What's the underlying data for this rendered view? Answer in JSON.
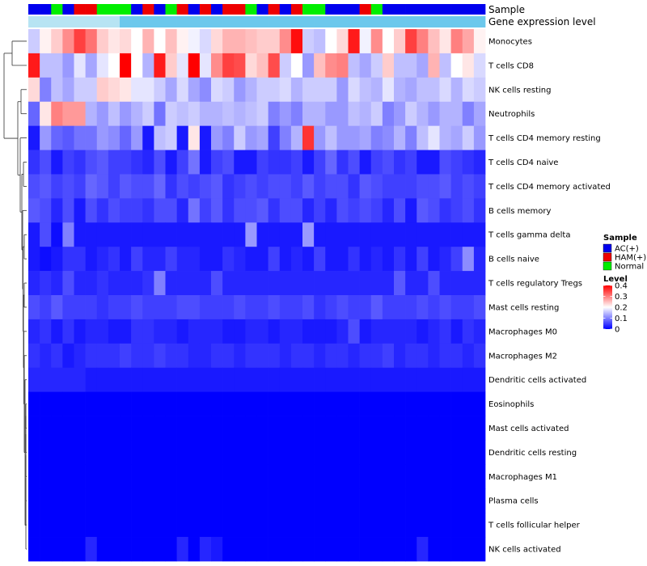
{
  "chart_data": {
    "type": "heatmap",
    "title": "",
    "annotation_tracks": [
      {
        "name": "Sample"
      },
      {
        "name": "Gene expression level"
      }
    ],
    "rows": [
      "Monocytes",
      "T cells CD8",
      "NK cells resting",
      "Neutrophils",
      "T cells CD4 memory resting",
      "T cells CD4 naive",
      "T cells CD4 memory activated",
      "B cells memory",
      "T cells gamma delta",
      "B cells naive",
      "T cells regulatory  Tregs",
      "Mast cells resting",
      "Macrophages M0",
      "Macrophages M2",
      "Dendritic cells activated",
      "Eosinophils",
      "Mast cells activated",
      "Dendritic cells resting",
      "Macrophages M1",
      "Plasma cells",
      "T cells follicular helper",
      "NK cells activated"
    ],
    "sample_groups": [
      "AC",
      "AC",
      "N",
      "AC",
      "H",
      "H",
      "N",
      "N",
      "N",
      "AC",
      "H",
      "AC",
      "N",
      "H",
      "AC",
      "H",
      "AC",
      "H",
      "H",
      "N",
      "AC",
      "H",
      "AC",
      "H",
      "N",
      "N",
      "AC",
      "AC",
      "AC",
      "H",
      "N",
      "AC",
      "AC",
      "AC",
      "AC",
      "AC",
      "AC",
      "AC",
      "AC",
      "AC"
    ],
    "values": [
      [
        0.16,
        0.21,
        0.24,
        0.29,
        0.35,
        0.31,
        0.24,
        0.22,
        0.23,
        0.2,
        0.26,
        0.2,
        0.25,
        0.21,
        0.19,
        0.17,
        0.23,
        0.26,
        0.26,
        0.25,
        0.24,
        0.24,
        0.29,
        0.39,
        0.16,
        0.15,
        0.2,
        0.23,
        0.38,
        0.19,
        0.29,
        0.2,
        0.24,
        0.35,
        0.3,
        0.25,
        0.22,
        0.3,
        0.27,
        0.21
      ],
      [
        0.38,
        0.15,
        0.15,
        0.12,
        0.18,
        0.13,
        0.18,
        0.2,
        0.4,
        0.2,
        0.14,
        0.38,
        0.24,
        0.18,
        0.4,
        0.18,
        0.29,
        0.35,
        0.34,
        0.23,
        0.25,
        0.34,
        0.16,
        0.2,
        0.12,
        0.25,
        0.29,
        0.3,
        0.15,
        0.13,
        0.16,
        0.24,
        0.15,
        0.15,
        0.13,
        0.26,
        0.15,
        0.2,
        0.22,
        0.17
      ],
      [
        0.23,
        0.1,
        0.15,
        0.13,
        0.16,
        0.16,
        0.24,
        0.23,
        0.22,
        0.18,
        0.18,
        0.16,
        0.13,
        0.17,
        0.13,
        0.11,
        0.17,
        0.16,
        0.12,
        0.14,
        0.16,
        0.16,
        0.17,
        0.14,
        0.16,
        0.16,
        0.16,
        0.12,
        0.17,
        0.15,
        0.14,
        0.18,
        0.14,
        0.13,
        0.15,
        0.15,
        0.17,
        0.14,
        0.17,
        0.16
      ],
      [
        0.08,
        0.22,
        0.3,
        0.28,
        0.28,
        0.14,
        0.12,
        0.15,
        0.12,
        0.14,
        0.16,
        0.09,
        0.16,
        0.15,
        0.16,
        0.14,
        0.14,
        0.15,
        0.14,
        0.15,
        0.16,
        0.1,
        0.12,
        0.1,
        0.14,
        0.14,
        0.12,
        0.12,
        0.15,
        0.14,
        0.16,
        0.1,
        0.12,
        0.16,
        0.14,
        0.12,
        0.14,
        0.14,
        0.1,
        0.13
      ],
      [
        0.02,
        0.12,
        0.08,
        0.07,
        0.09,
        0.09,
        0.12,
        0.11,
        0.08,
        0.12,
        0.02,
        0.15,
        0.16,
        0.02,
        0.22,
        0.02,
        0.12,
        0.1,
        0.16,
        0.12,
        0.13,
        0.05,
        0.1,
        0.14,
        0.36,
        0.12,
        0.15,
        0.12,
        0.12,
        0.13,
        0.1,
        0.11,
        0.14,
        0.1,
        0.15,
        0.18,
        0.14,
        0.13,
        0.16,
        0.12
      ],
      [
        0.04,
        0.06,
        0.02,
        0.05,
        0.04,
        0.06,
        0.07,
        0.05,
        0.05,
        0.04,
        0.03,
        0.06,
        0.02,
        0.05,
        0.09,
        0.02,
        0.05,
        0.06,
        0.02,
        0.02,
        0.05,
        0.04,
        0.04,
        0.05,
        0.02,
        0.05,
        0.08,
        0.04,
        0.06,
        0.02,
        0.05,
        0.06,
        0.04,
        0.05,
        0.02,
        0.02,
        0.06,
        0.05,
        0.04,
        0.03
      ],
      [
        0.06,
        0.07,
        0.05,
        0.06,
        0.05,
        0.08,
        0.07,
        0.05,
        0.07,
        0.06,
        0.06,
        0.08,
        0.04,
        0.06,
        0.05,
        0.06,
        0.07,
        0.04,
        0.05,
        0.06,
        0.05,
        0.06,
        0.06,
        0.05,
        0.07,
        0.05,
        0.06,
        0.06,
        0.04,
        0.07,
        0.06,
        0.05,
        0.05,
        0.05,
        0.06,
        0.06,
        0.07,
        0.05,
        0.06,
        0.05
      ],
      [
        0.07,
        0.06,
        0.03,
        0.06,
        0.02,
        0.06,
        0.04,
        0.06,
        0.05,
        0.05,
        0.04,
        0.06,
        0.06,
        0.03,
        0.09,
        0.05,
        0.07,
        0.04,
        0.06,
        0.06,
        0.07,
        0.04,
        0.06,
        0.06,
        0.03,
        0.05,
        0.03,
        0.06,
        0.05,
        0.06,
        0.05,
        0.03,
        0.06,
        0.02,
        0.07,
        0.06,
        0.04,
        0.05,
        0.06,
        0.04
      ],
      [
        0.02,
        0.06,
        0.01,
        0.1,
        0.02,
        0.02,
        0.02,
        0.02,
        0.02,
        0.02,
        0.02,
        0.02,
        0.02,
        0.02,
        0.02,
        0.02,
        0.02,
        0.02,
        0.02,
        0.12,
        0.02,
        0.02,
        0.02,
        0.02,
        0.12,
        0.02,
        0.02,
        0.02,
        0.02,
        0.02,
        0.02,
        0.02,
        0.02,
        0.02,
        0.02,
        0.02,
        0.02,
        0.02,
        0.02,
        0.02
      ],
      [
        0.02,
        0.01,
        0.02,
        0.04,
        0.04,
        0.02,
        0.03,
        0.04,
        0.02,
        0.05,
        0.03,
        0.03,
        0.05,
        0.03,
        0.03,
        0.02,
        0.02,
        0.04,
        0.03,
        0.02,
        0.02,
        0.05,
        0.02,
        0.03,
        0.02,
        0.05,
        0.02,
        0.02,
        0.04,
        0.02,
        0.03,
        0.02,
        0.04,
        0.02,
        0.05,
        0.02,
        0.03,
        0.05,
        0.11,
        0.03
      ],
      [
        0.03,
        0.04,
        0.03,
        0.06,
        0.03,
        0.03,
        0.04,
        0.03,
        0.03,
        0.03,
        0.04,
        0.1,
        0.03,
        0.03,
        0.03,
        0.03,
        0.06,
        0.03,
        0.03,
        0.03,
        0.03,
        0.03,
        0.03,
        0.03,
        0.03,
        0.03,
        0.03,
        0.03,
        0.03,
        0.03,
        0.03,
        0.03,
        0.07,
        0.03,
        0.03,
        0.06,
        0.03,
        0.03,
        0.03,
        0.03
      ],
      [
        0.06,
        0.05,
        0.07,
        0.05,
        0.05,
        0.05,
        0.04,
        0.05,
        0.05,
        0.06,
        0.05,
        0.05,
        0.05,
        0.06,
        0.06,
        0.05,
        0.05,
        0.05,
        0.06,
        0.05,
        0.05,
        0.06,
        0.05,
        0.05,
        0.06,
        0.04,
        0.05,
        0.06,
        0.05,
        0.05,
        0.07,
        0.05,
        0.05,
        0.05,
        0.06,
        0.05,
        0.06,
        0.05,
        0.05,
        0.06
      ],
      [
        0.03,
        0.04,
        0.02,
        0.04,
        0.02,
        0.03,
        0.03,
        0.02,
        0.02,
        0.04,
        0.04,
        0.03,
        0.03,
        0.02,
        0.03,
        0.03,
        0.03,
        0.02,
        0.02,
        0.03,
        0.03,
        0.02,
        0.03,
        0.03,
        0.02,
        0.02,
        0.02,
        0.03,
        0.06,
        0.02,
        0.03,
        0.03,
        0.03,
        0.03,
        0.02,
        0.03,
        0.04,
        0.02,
        0.04,
        0.03
      ],
      [
        0.04,
        0.03,
        0.04,
        0.02,
        0.03,
        0.04,
        0.04,
        0.04,
        0.05,
        0.04,
        0.04,
        0.05,
        0.04,
        0.04,
        0.03,
        0.03,
        0.04,
        0.04,
        0.03,
        0.04,
        0.04,
        0.04,
        0.03,
        0.04,
        0.04,
        0.03,
        0.04,
        0.04,
        0.03,
        0.04,
        0.04,
        0.05,
        0.03,
        0.04,
        0.04,
        0.03,
        0.04,
        0.04,
        0.03,
        0.04
      ],
      [
        0.03,
        0.03,
        0.03,
        0.03,
        0.03,
        0.02,
        0.02,
        0.02,
        0.02,
        0.02,
        0.02,
        0.02,
        0.02,
        0.02,
        0.02,
        0.02,
        0.02,
        0.02,
        0.02,
        0.02,
        0.02,
        0.02,
        0.02,
        0.02,
        0.02,
        0.02,
        0.02,
        0.02,
        0.02,
        0.02,
        0.02,
        0.02,
        0.02,
        0.02,
        0.02,
        0.02,
        0.02,
        0.02,
        0.02,
        0.02
      ],
      [
        0,
        0,
        0,
        0,
        0,
        0,
        0,
        0,
        0,
        0,
        0,
        0,
        0,
        0,
        0,
        0,
        0,
        0,
        0,
        0,
        0,
        0,
        0,
        0,
        0,
        0,
        0,
        0,
        0,
        0,
        0,
        0,
        0,
        0,
        0,
        0,
        0,
        0,
        0,
        0
      ],
      [
        0,
        0,
        0,
        0,
        0,
        0,
        0,
        0,
        0,
        0,
        0,
        0,
        0,
        0,
        0,
        0,
        0,
        0,
        0,
        0,
        0,
        0,
        0,
        0,
        0,
        0,
        0,
        0,
        0,
        0,
        0,
        0,
        0,
        0,
        0,
        0,
        0,
        0,
        0,
        0
      ],
      [
        0,
        0,
        0,
        0,
        0,
        0,
        0,
        0,
        0,
        0,
        0,
        0,
        0,
        0,
        0,
        0,
        0,
        0,
        0,
        0,
        0,
        0,
        0,
        0,
        0,
        0,
        0,
        0,
        0,
        0,
        0,
        0,
        0,
        0,
        0,
        0,
        0,
        0,
        0,
        0
      ],
      [
        0,
        0,
        0,
        0,
        0,
        0,
        0,
        0,
        0,
        0,
        0,
        0,
        0,
        0,
        0,
        0,
        0,
        0,
        0,
        0,
        0,
        0,
        0,
        0,
        0,
        0,
        0,
        0,
        0,
        0,
        0,
        0,
        0,
        0,
        0,
        0,
        0,
        0,
        0,
        0
      ],
      [
        0,
        0,
        0,
        0,
        0,
        0,
        0,
        0,
        0,
        0,
        0,
        0,
        0,
        0,
        0,
        0,
        0,
        0,
        0,
        0,
        0,
        0,
        0,
        0,
        0,
        0,
        0,
        0,
        0,
        0,
        0,
        0,
        0,
        0,
        0,
        0,
        0,
        0,
        0,
        0
      ],
      [
        0,
        0,
        0,
        0,
        0,
        0,
        0,
        0,
        0,
        0,
        0,
        0,
        0,
        0,
        0,
        0,
        0,
        0,
        0,
        0,
        0,
        0,
        0,
        0,
        0,
        0,
        0,
        0,
        0,
        0,
        0,
        0,
        0,
        0,
        0,
        0,
        0,
        0,
        0,
        0
      ],
      [
        0,
        0,
        0,
        0,
        0,
        0.03,
        0,
        0,
        0,
        0,
        0,
        0,
        0,
        0.03,
        0,
        0.03,
        0.02,
        0,
        0,
        0,
        0,
        0,
        0,
        0,
        0,
        0,
        0,
        0,
        0,
        0,
        0,
        0,
        0,
        0,
        0.03,
        0,
        0,
        0,
        0,
        0
      ]
    ],
    "value_range": [
      0,
      0.4
    ],
    "color_scale": {
      "low": "#0000ff",
      "mid": "#ffffff",
      "high": "#ff0000",
      "mid_value": 0.2
    },
    "legend": {
      "sample_title": "Sample",
      "groups": [
        {
          "key": "AC",
          "label": "AC(+)",
          "color": "#0000ee"
        },
        {
          "key": "H",
          "label": "HAM(+)",
          "color": "#ee0000"
        },
        {
          "key": "N",
          "label": "Normal",
          "color": "#00ee00"
        }
      ],
      "level_title": "Level",
      "level_ticks": [
        {
          "value": 0.4,
          "label": "0.4"
        },
        {
          "value": 0.3,
          "label": "0.3"
        },
        {
          "value": 0.2,
          "label": "0.2"
        },
        {
          "value": 0.1,
          "label": "0.1"
        },
        {
          "value": 0,
          "label": "0"
        }
      ]
    },
    "expression_track_color": "#b7e4f3",
    "expression_track_accent_color": "#6cc8ec"
  }
}
